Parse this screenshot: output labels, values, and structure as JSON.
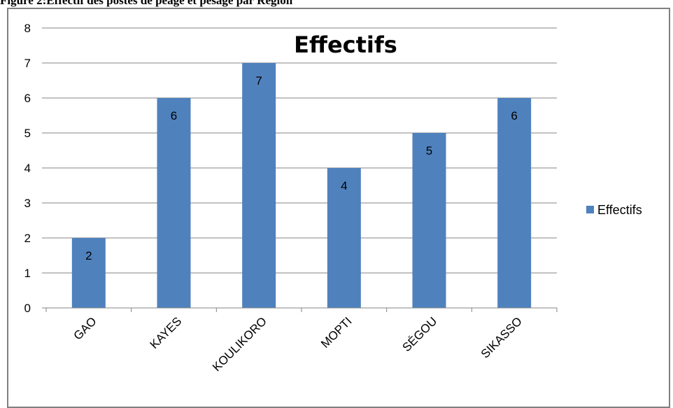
{
  "caption": "Figure 2:Effectif des postes de péage et pesage par Région",
  "chart_data": {
    "type": "bar",
    "title": "Effectifs",
    "categories": [
      "GAO",
      "KAYES",
      "KOULIKORO",
      "MOPTI",
      "SÉGOU",
      "SIKASSO"
    ],
    "series": [
      {
        "name": "Effectifs",
        "values": [
          2,
          6,
          7,
          4,
          5,
          6
        ],
        "color": "#4F81BD"
      }
    ],
    "ylim": [
      0,
      8
    ],
    "yticks": [
      0,
      1,
      2,
      3,
      4,
      5,
      6,
      7,
      8
    ],
    "data_labels": [
      "2",
      "6",
      "7",
      "4",
      "5",
      "6"
    ],
    "grid": true,
    "legend": "right"
  }
}
